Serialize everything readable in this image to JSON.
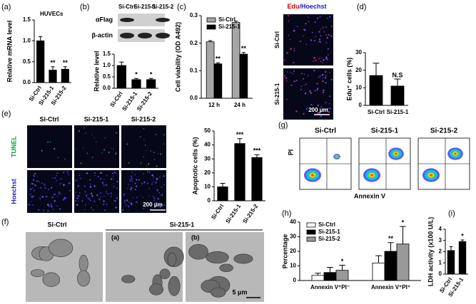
{
  "chart_data": [
    {
      "type": "bar",
      "panel": "(a)",
      "subtitle": "HUVECs",
      "ylabel": "Relative mRNA level",
      "categories": [
        "Si-Ctrl",
        "Si-215-1",
        "Si-215-2"
      ],
      "values": [
        1.0,
        0.3,
        0.32
      ],
      "errors": [
        0.1,
        0.08,
        0.06
      ],
      "annotations": [
        null,
        "**",
        "**"
      ],
      "color": "#000000",
      "ylim": [
        0,
        1.5
      ],
      "yticks": [
        {
          "value": 0,
          "label": "0.0"
        },
        0.5,
        {
          "value": 1,
          "label": "1.0"
        },
        1.5
      ]
    },
    {
      "type": "bar",
      "ylabel": "Relative level",
      "categories": [
        "Si-Ctrl",
        "Si-215-1",
        "Si-215-2"
      ],
      "values": [
        1.0,
        0.38,
        0.38
      ],
      "errors": [
        0.15,
        0.05,
        0.05
      ],
      "annotations": [
        null,
        "*",
        "*"
      ],
      "color": "#000000",
      "ylim": [
        0,
        1.5
      ],
      "yticks": [
        {
          "value": 0,
          "label": "0.0"
        },
        0.5,
        {
          "value": 1,
          "label": "1.0"
        },
        1.5
      ]
    },
    {
      "type": "bar",
      "panel": "(c)",
      "ylabel": "Cell viability (OD A492)",
      "categories": [
        "12 h",
        "24 h"
      ],
      "series": [
        {
          "name": "Si-Ctrl",
          "color": "#a6a6a6",
          "values": [
            0.205,
            0.275
          ],
          "errors": [
            0.004,
            0.005
          ],
          "annotations": [
            null,
            null
          ]
        },
        {
          "name": "Si-215-1",
          "color": "#000000",
          "values": [
            0.125,
            0.16
          ],
          "errors": [
            0.004,
            0.006
          ],
          "annotations": [
            "**",
            "**"
          ]
        }
      ],
      "legend": "upper left",
      "ylim": [
        0,
        0.3
      ],
      "yticks": [
        {
          "value": 0,
          "label": "0.0"
        },
        0.1,
        0.2,
        0.3
      ]
    },
    {
      "type": "bar",
      "ylabel": "Edu⁺ cells (%)",
      "categories": [
        "Si-Ctrl",
        "Si-215-1"
      ],
      "values": [
        17,
        11
      ],
      "errors": [
        7,
        4
      ],
      "annotations": [
        null,
        "N.S"
      ],
      "color": "#000000",
      "ylim": [
        0,
        30
      ],
      "yticks": [
        0,
        10,
        20,
        30
      ]
    },
    {
      "type": "bar",
      "ylabel": "Apoptotic cells (%)",
      "categories": [
        "Si-Ctrl",
        "Si-215-1",
        "Si-215-2"
      ],
      "values": [
        10,
        41,
        31
      ],
      "errors": [
        2.5,
        3.5,
        2
      ],
      "annotations": [
        null,
        "***",
        "***"
      ],
      "color": "#000000",
      "ylim": [
        0,
        50
      ],
      "yticks": [
        0,
        10,
        20,
        30,
        40,
        50
      ]
    },
    {
      "type": "bar",
      "panel": "(h)",
      "ylabel": "Percentage",
      "categories": [
        "Annexin V⁺PI⁻",
        "Annexin V⁺PI⁺"
      ],
      "series": [
        {
          "name": "Si-Ctrl",
          "color": "#ffffff",
          "values": [
            3.5,
            12
          ],
          "errors": [
            1.5,
            5
          ],
          "annotations": [
            null,
            null
          ]
        },
        {
          "name": "Si-215-1",
          "color": "#000000",
          "values": [
            5.5,
            20
          ],
          "errors": [
            3.5,
            6
          ],
          "annotations": [
            null,
            "**"
          ]
        },
        {
          "name": "Si-215-2",
          "color": "#999999",
          "values": [
            7,
            25
          ],
          "errors": [
            3.5,
            12
          ],
          "annotations": [
            "*",
            "*"
          ]
        }
      ],
      "legend": "upper left",
      "ylim": [
        0,
        40
      ],
      "yticks": [
        0,
        10,
        20,
        30,
        40
      ]
    },
    {
      "type": "bar",
      "panel": "(i)",
      "ylabel": "LDH activity (x100 U/L)",
      "categories": [
        "Si-Ctrl",
        "Si-215-1"
      ],
      "values": [
        2.1,
        2.9
      ],
      "errors": [
        0.35,
        0.15
      ],
      "annotations": [
        null,
        "*"
      ],
      "color": "#000000",
      "ylim": [
        0,
        4
      ],
      "yticks": [
        0,
        1,
        2,
        3,
        4
      ]
    }
  ],
  "figure_panels": {
    "blot": {
      "panel": "(b)",
      "lanes": [
        "Si-Ctrl",
        "Si-215-1",
        "Si-215-2"
      ],
      "rows": [
        "αFlag",
        "β-actin"
      ]
    },
    "edu": {
      "panel": "(d)",
      "title": [
        "Edu",
        "/Hoechst"
      ],
      "rows": [
        "Si-Ctrl",
        "Si-215-1"
      ],
      "scale": "200 μm"
    },
    "tunel": {
      "panel": "(e)",
      "columns": [
        "Si-Ctrl",
        "Si-215-1",
        "Si-215-2"
      ],
      "rows": [
        "TUNEL",
        "Hoechst"
      ],
      "scale": "200 μm"
    },
    "em": {
      "panel": "(f)",
      "left": "Si-Ctrl",
      "right": "Si-215-1",
      "insets": [
        "(a)",
        "(b)"
      ],
      "scale": "5 μm"
    },
    "flow": {
      "panel": "(g)",
      "samples": [
        "Si-Ctrl",
        "Si-215-1",
        "Si-215-2"
      ],
      "ylabel": "PI",
      "xlabel": "Annexin V"
    }
  }
}
